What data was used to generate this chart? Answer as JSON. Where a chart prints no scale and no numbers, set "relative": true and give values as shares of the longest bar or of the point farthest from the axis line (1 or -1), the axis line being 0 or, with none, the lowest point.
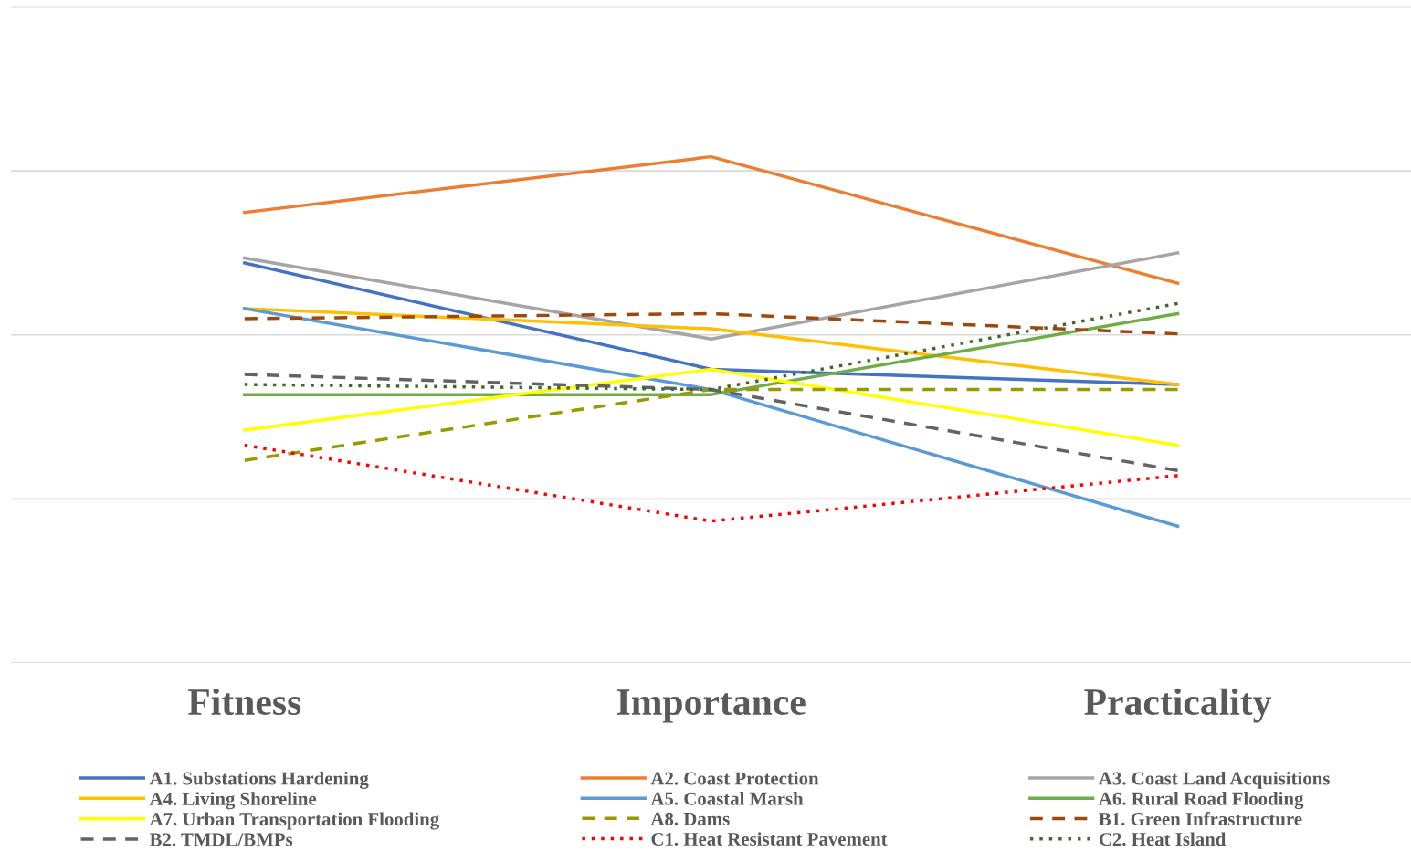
{
  "chart_data": {
    "type": "line",
    "relative": true,
    "grid": "y",
    "legend": "bottom",
    "marker": "none",
    "categories": [
      "Fitness",
      "Importance",
      "Practicality"
    ],
    "series": [
      {
        "name": "A1. Substations Hardening",
        "color": "#4472c4",
        "line_style": "solid",
        "values": [
          0.79,
          0.58,
          0.55
        ]
      },
      {
        "name": "A2. Coast Protection",
        "color": "#ed7d31",
        "line_style": "solid",
        "values": [
          0.89,
          1,
          0.75
        ]
      },
      {
        "name": "A3. Coast Land Acquisitions",
        "color": "#a5a5a5",
        "line_style": "solid",
        "values": [
          0.8,
          0.64,
          0.81
        ]
      },
      {
        "name": "A4. Living Shoreline",
        "color": "#ffc000",
        "line_style": "solid",
        "values": [
          0.7,
          0.66,
          0.55
        ]
      },
      {
        "name": "A5. Coastal Marsh",
        "color": "#5b9bd5",
        "line_style": "solid",
        "values": [
          0.7,
          0.54,
          0.27
        ]
      },
      {
        "name": "A6. Rural Road Flooding",
        "color": "#70ad47",
        "line_style": "solid",
        "values": [
          0.53,
          0.53,
          0.69
        ]
      },
      {
        "name": "A7. Urban Transportation Flooding",
        "color": "#ffff00",
        "line_style": "solid",
        "values": [
          0.46,
          0.58,
          0.43
        ]
      },
      {
        "name": "A8. Dams",
        "color": "#999900",
        "line_style": "dashed",
        "values": [
          0.4,
          0.54,
          0.54
        ]
      },
      {
        "name": "B1. Green Infrastructure",
        "color": "#9e480e",
        "line_style": "dashed",
        "values": [
          0.68,
          0.69,
          0.65
        ]
      },
      {
        "name": "B2. TMDL/BMPs",
        "color": "#636363",
        "line_style": "dashed",
        "values": [
          0.57,
          0.54,
          0.38
        ]
      },
      {
        "name": "C1. Heat Resistant Pavement",
        "color": "#ff0000",
        "line_style": "dotted",
        "values": [
          0.43,
          0.28,
          0.37
        ]
      },
      {
        "name": "C2. Heat Island",
        "color": "#43682b",
        "line_style": "dotted",
        "values": [
          0.55,
          0.54,
          0.71
        ]
      }
    ]
  }
}
